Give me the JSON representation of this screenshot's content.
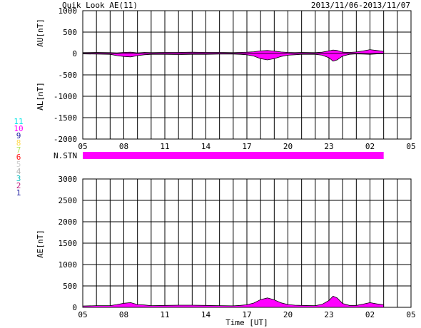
{
  "title": "Quik Look AE(11)",
  "date_range": "2013/11/06-2013/11/07",
  "xlabel": "Time [UT]",
  "station_label": "N.STN",
  "station_legend": [
    {
      "label": "11",
      "color": "#00e5e5"
    },
    {
      "label": "10",
      "color": "#ff00ff"
    },
    {
      "label": "9",
      "color": "#1a1aa0"
    },
    {
      "label": "8",
      "color": "#ffd84d"
    },
    {
      "label": "7",
      "color": "#b0e860"
    },
    {
      "label": "6",
      "color": "#ff1a1a"
    },
    {
      "label": "5",
      "color": "#d0d0d0"
    },
    {
      "label": "4",
      "color": "#b0b0b0"
    },
    {
      "label": "3",
      "color": "#10c0c0"
    },
    {
      "label": "2",
      "color": "#c02080"
    },
    {
      "label": "1",
      "color": "#1a1aa0"
    }
  ],
  "fill_color": "#ff00ff",
  "chart_data": [
    {
      "type": "area",
      "name": "AU/AL",
      "ylabel_top": "AU[nT]",
      "ylabel_bottom": "AL[nT]",
      "ylim": [
        -2000,
        1000
      ],
      "yticks": [
        1000,
        500,
        0,
        -500,
        -1000,
        -1500,
        -2000
      ],
      "xlim": [
        5,
        29
      ],
      "xtick_labels": [
        "05",
        "08",
        "11",
        "14",
        "17",
        "20",
        "23",
        "02",
        "05"
      ],
      "x": [
        5,
        6,
        7,
        7.5,
        8,
        8.5,
        9,
        9.5,
        10,
        11,
        12,
        13,
        14,
        15,
        16,
        16.5,
        17,
        17.5,
        18,
        18.5,
        19,
        19.5,
        20,
        20.5,
        21,
        22,
        22.5,
        23,
        23.3,
        23.6,
        24,
        24.5,
        25,
        25.5,
        26,
        26.5,
        27
      ],
      "au": [
        20,
        25,
        20,
        15,
        25,
        30,
        15,
        25,
        20,
        25,
        25,
        30,
        25,
        25,
        20,
        25,
        30,
        40,
        60,
        70,
        55,
        35,
        25,
        20,
        25,
        20,
        30,
        60,
        80,
        70,
        30,
        25,
        35,
        60,
        90,
        70,
        50
      ],
      "al": [
        -10,
        -15,
        -20,
        -50,
        -70,
        -80,
        -50,
        -30,
        -20,
        -20,
        -25,
        -20,
        -20,
        -15,
        -15,
        -20,
        -30,
        -60,
        -120,
        -150,
        -120,
        -70,
        -40,
        -30,
        -20,
        -20,
        -40,
        -100,
        -180,
        -150,
        -60,
        -20,
        -10,
        -15,
        -20,
        -10,
        -10
      ]
    },
    {
      "type": "area",
      "name": "AE",
      "ylabel": "AE[nT]",
      "ylim": [
        0,
        3000
      ],
      "yticks": [
        3000,
        2500,
        2000,
        1500,
        1000,
        500,
        0
      ],
      "xlim": [
        5,
        29
      ],
      "xtick_labels": [
        "05",
        "08",
        "11",
        "14",
        "17",
        "20",
        "23",
        "02",
        "05"
      ],
      "x": [
        5,
        6,
        7,
        7.5,
        8,
        8.5,
        9,
        9.5,
        10,
        11,
        12,
        13,
        14,
        15,
        16,
        16.5,
        17,
        17.5,
        18,
        18.5,
        19,
        19.5,
        20,
        20.5,
        21,
        22,
        22.5,
        23,
        23.3,
        23.6,
        24,
        24.5,
        25,
        25.5,
        26,
        26.5,
        27
      ],
      "values": [
        30,
        40,
        40,
        65,
        95,
        110,
        65,
        55,
        40,
        45,
        50,
        50,
        45,
        40,
        35,
        45,
        60,
        100,
        180,
        220,
        175,
        105,
        65,
        50,
        45,
        40,
        70,
        160,
        260,
        220,
        90,
        45,
        45,
        75,
        110,
        80,
        60
      ]
    }
  ]
}
